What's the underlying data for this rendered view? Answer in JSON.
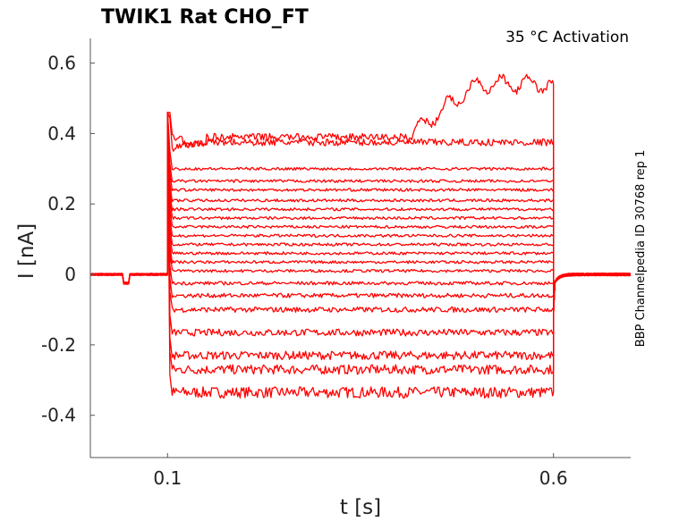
{
  "chart_data": {
    "type": "line",
    "title": "TWIK1  Rat  CHO_FT",
    "subtitle": "35 °C  Activation",
    "side_label": "BBP Channelpedia ID 30768 rep 1",
    "xlabel": "t [s]",
    "ylabel": "I [nA]",
    "xlim": [
      0.0,
      0.7
    ],
    "ylim": [
      -0.52,
      0.67
    ],
    "xticks": [
      0.1,
      0.6
    ],
    "xtick_labels": [
      "0.1",
      "0.6"
    ],
    "yticks": [
      0.6,
      0.4,
      0.2,
      0,
      -0.2,
      -0.4
    ],
    "ytick_labels": [
      "0.6",
      "0.4",
      "0.2",
      "0",
      "-0.2",
      "-0.4"
    ],
    "grid": false,
    "line_color": "#ff0000",
    "baseline": 0.0,
    "step_on": 0.1,
    "step_off": 0.6,
    "onset_peak": 0.46,
    "step_levels": [
      -0.335,
      -0.27,
      -0.23,
      -0.165,
      -0.1,
      -0.06,
      -0.025,
      0.01,
      0.035,
      0.06,
      0.085,
      0.11,
      0.135,
      0.16,
      0.185,
      0.21,
      0.24,
      0.265,
      0.3,
      0.375,
      0.39
    ],
    "last_trace_end": 0.54
  }
}
